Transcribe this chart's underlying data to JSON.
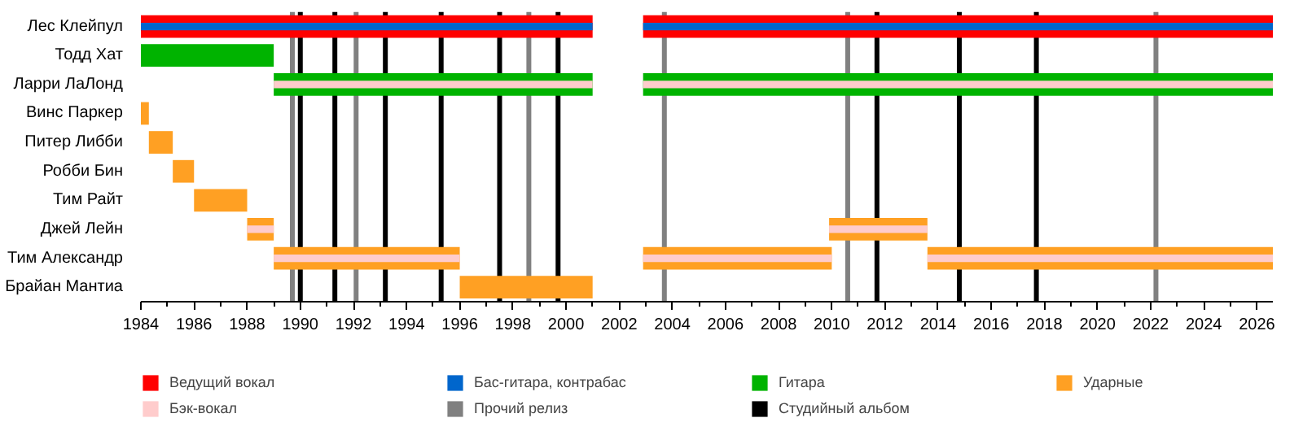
{
  "chart_data": {
    "type": "bar",
    "orientation": "horizontal",
    "categories": [
      "Лес Клейпул",
      "Тодд Хат",
      "Ларри ЛаЛонд",
      "Винс Паркер",
      "Питер Либби",
      "Робби Бин",
      "Тим Райт",
      "Джей Лейн",
      "Тим Александр",
      "Брайан Мантиа"
    ],
    "xlim": [
      1984,
      2026.6
    ],
    "xticks": [
      1984,
      1986,
      1988,
      1990,
      1992,
      1994,
      1996,
      1998,
      2000,
      2002,
      2004,
      2006,
      2008,
      2010,
      2012,
      2014,
      2016,
      2018,
      2020,
      2022,
      2024,
      2026
    ],
    "grid": false,
    "legend": "bottom",
    "series": [
      {
        "name": "Ведущий вокал",
        "color": "#ff0000",
        "base": [
          1984,
          null,
          null,
          null,
          null,
          null,
          null,
          null,
          null,
          null
        ],
        "values": [
          17.0,
          null,
          null,
          null,
          null,
          null,
          null,
          null,
          null,
          null
        ]
      },
      {
        "color": "#ff0000",
        "base": [
          2002.9,
          null,
          null,
          null,
          null,
          null,
          null,
          null,
          null,
          null
        ],
        "values": [
          23.7,
          null,
          null,
          null,
          null,
          null,
          null,
          null,
          null,
          null
        ]
      },
      {
        "name": "Бас-гитара, контрабас",
        "color": "#0066cc",
        "base": [
          1984,
          null,
          null,
          null,
          null,
          null,
          null,
          null,
          null,
          null
        ],
        "values": [
          17.0,
          null,
          null,
          null,
          null,
          null,
          null,
          null,
          null,
          null
        ]
      },
      {
        "color": "#0066cc",
        "base": [
          2002.9,
          null,
          null,
          null,
          null,
          null,
          null,
          null,
          null,
          null
        ],
        "values": [
          23.7,
          null,
          null,
          null,
          null,
          null,
          null,
          null,
          null,
          null
        ]
      },
      {
        "name": "Гитара",
        "color": "#00b300",
        "base": [
          null,
          1984,
          1989,
          null,
          null,
          null,
          null,
          null,
          null,
          null
        ],
        "values": [
          null,
          5.0,
          12.0,
          null,
          null,
          null,
          null,
          null,
          null,
          null
        ]
      },
      {
        "color": "#00b300",
        "base": [
          null,
          null,
          2002.9,
          null,
          null,
          null,
          null,
          null,
          null,
          null
        ],
        "values": [
          null,
          null,
          23.7,
          null,
          null,
          null,
          null,
          null,
          null,
          null
        ]
      },
      {
        "name": "Ударные",
        "color": "#ffa023",
        "base": [
          null,
          null,
          null,
          1984,
          1984.3,
          1985.2,
          1986,
          1988,
          1989,
          1996
        ],
        "values": [
          null,
          null,
          null,
          0.3,
          0.9,
          0.8,
          2.0,
          1.0,
          7.0,
          5.0
        ]
      },
      {
        "color": "#ffa023",
        "base": [
          null,
          null,
          null,
          null,
          null,
          null,
          null,
          2009.9,
          2002.9,
          null
        ],
        "values": [
          null,
          null,
          null,
          null,
          null,
          null,
          null,
          3.7,
          7.1,
          null
        ]
      },
      {
        "color": "#ffa023",
        "base": [
          null,
          null,
          null,
          null,
          null,
          null,
          null,
          null,
          2013.6,
          null
        ],
        "values": [
          null,
          null,
          null,
          null,
          null,
          null,
          null,
          null,
          13.0,
          null
        ]
      },
      {
        "name": "Бэк-вокал",
        "color": "#ffcccc",
        "base": [
          null,
          null,
          1989,
          null,
          null,
          null,
          null,
          1988,
          1989,
          null
        ],
        "values": [
          null,
          null,
          12.0,
          null,
          null,
          null,
          null,
          1.0,
          7.0,
          null
        ]
      },
      {
        "color": "#ffcccc",
        "base": [
          null,
          null,
          2002.9,
          null,
          null,
          null,
          null,
          2009.9,
          2002.9,
          null
        ],
        "values": [
          null,
          null,
          23.7,
          null,
          null,
          null,
          null,
          3.7,
          7.1,
          null
        ]
      },
      {
        "color": "#ffcccc",
        "base": [
          null,
          null,
          null,
          null,
          null,
          null,
          null,
          null,
          2013.6,
          null
        ],
        "values": [
          null,
          null,
          null,
          null,
          null,
          null,
          null,
          null,
          13.0,
          null
        ]
      }
    ],
    "ref_lines": [
      {
        "axis": "x",
        "value": 1989.7,
        "label": "Прочий релиз",
        "color": "#808080"
      },
      {
        "axis": "x",
        "value": 1992.1,
        "color": "#808080"
      },
      {
        "axis": "x",
        "value": 1998.6,
        "color": "#808080"
      },
      {
        "axis": "x",
        "value": 2003.7,
        "color": "#808080"
      },
      {
        "axis": "x",
        "value": 2010.6,
        "color": "#808080"
      },
      {
        "axis": "x",
        "value": 2022.2,
        "color": "#808080"
      },
      {
        "axis": "x",
        "value": 1990.0,
        "label": "Студийный альбом",
        "color": "#000000"
      },
      {
        "axis": "x",
        "value": 1991.3,
        "color": "#000000"
      },
      {
        "axis": "x",
        "value": 1993.2,
        "color": "#000000"
      },
      {
        "axis": "x",
        "value": 1995.3,
        "color": "#000000"
      },
      {
        "axis": "x",
        "value": 1997.5,
        "color": "#000000"
      },
      {
        "axis": "x",
        "value": 1999.7,
        "color": "#000000"
      },
      {
        "axis": "x",
        "value": 2011.7,
        "color": "#000000"
      },
      {
        "axis": "x",
        "value": 2014.8,
        "color": "#000000"
      },
      {
        "axis": "x",
        "value": 2017.7,
        "color": "#000000"
      }
    ]
  }
}
